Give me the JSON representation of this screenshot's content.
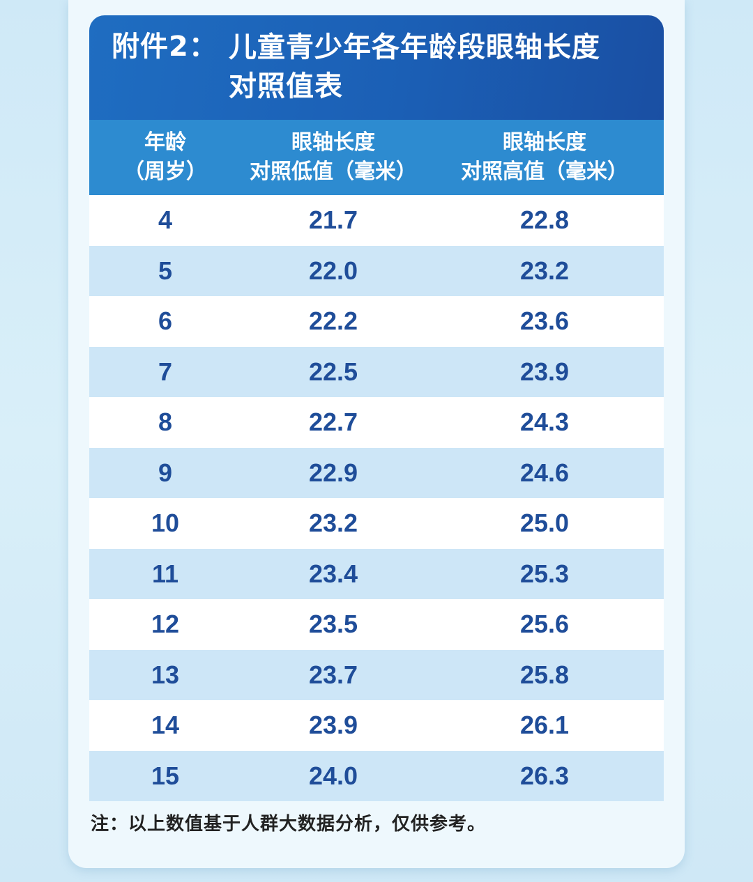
{
  "title": {
    "prefix": "附件2：",
    "line1": "儿童青少年各年龄段眼轴长度",
    "line2": "对照值表"
  },
  "columns": [
    {
      "line1": "年龄",
      "line2": "（周岁）"
    },
    {
      "line1": "眼轴长度",
      "line2": "对照低值（毫米）"
    },
    {
      "line1": "眼轴长度",
      "line2": "对照高值（毫米）"
    }
  ],
  "rows": [
    {
      "age": "4",
      "low": "21.7",
      "high": "22.8"
    },
    {
      "age": "5",
      "low": "22.0",
      "high": "23.2"
    },
    {
      "age": "6",
      "low": "22.2",
      "high": "23.6"
    },
    {
      "age": "7",
      "low": "22.5",
      "high": "23.9"
    },
    {
      "age": "8",
      "low": "22.7",
      "high": "24.3"
    },
    {
      "age": "9",
      "low": "22.9",
      "high": "24.6"
    },
    {
      "age": "10",
      "low": "23.2",
      "high": "25.0"
    },
    {
      "age": "11",
      "low": "23.4",
      "high": "25.3"
    },
    {
      "age": "12",
      "low": "23.5",
      "high": "25.6"
    },
    {
      "age": "13",
      "low": "23.7",
      "high": "25.8"
    },
    {
      "age": "14",
      "low": "23.9",
      "high": "26.1"
    },
    {
      "age": "15",
      "low": "24.0",
      "high": "26.3"
    }
  ],
  "footnote": "注：以上数值基于人群大数据分析，仅供参考。",
  "colors": {
    "title_bg": "#1b5fb5",
    "header_bg": "#2d8bd0",
    "row_alt_bg": "#cde6f7",
    "value_text": "#1f4d99"
  }
}
